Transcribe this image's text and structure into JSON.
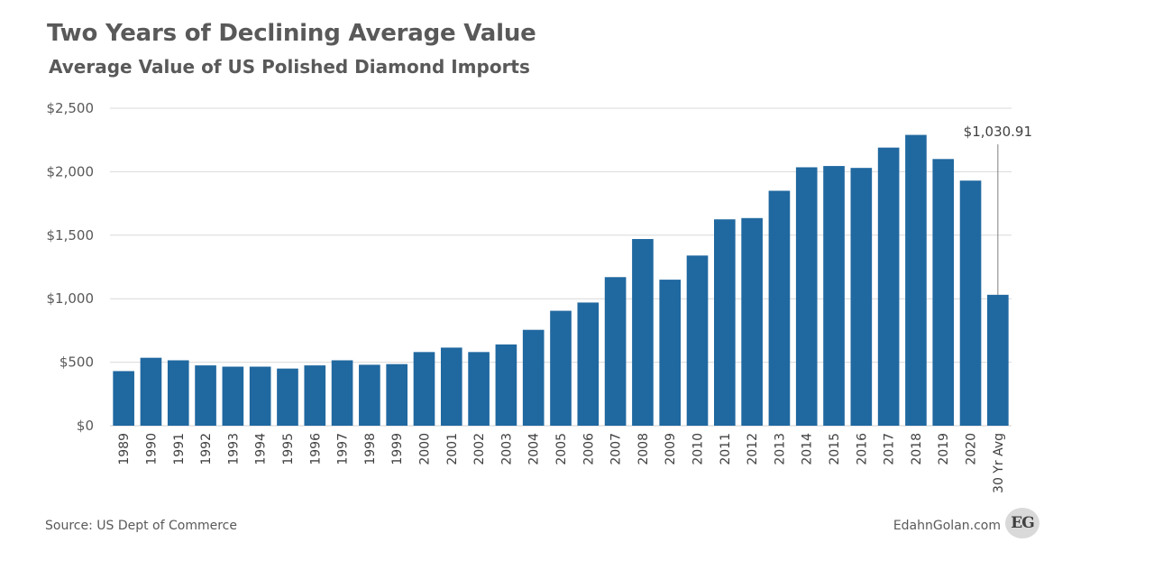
{
  "title": "Two Years of Declining Average Value",
  "subtitle": "Average Value of US Polished Diamond Imports",
  "source": "Source: US Dept of Commerce",
  "site": "EdahnGolan.com",
  "logo_text": "EG",
  "colors": {
    "bar": "#2068a0",
    "grid": "#d9d9d9",
    "text": "#595959"
  },
  "chart_data": {
    "type": "bar",
    "title": "Two Years of Declining Average Value",
    "subtitle": "Average Value of US Polished Diamond Imports",
    "categories": [
      "1989",
      "1990",
      "1991",
      "1992",
      "1993",
      "1994",
      "1995",
      "1996",
      "1997",
      "1998",
      "1999",
      "2000",
      "2001",
      "2002",
      "2003",
      "2004",
      "2005",
      "2006",
      "2007",
      "2008",
      "2009",
      "2010",
      "2011",
      "2012",
      "2013",
      "2014",
      "2015",
      "2016",
      "2017",
      "2018",
      "2019",
      "2020",
      "30 Yr Avg"
    ],
    "values": [
      430,
      535,
      515,
      475,
      465,
      465,
      450,
      475,
      515,
      480,
      485,
      580,
      615,
      580,
      640,
      755,
      905,
      970,
      1170,
      1470,
      1150,
      1340,
      1625,
      1635,
      1850,
      2035,
      2045,
      2030,
      2190,
      2290,
      2100,
      1930,
      1030.91
    ],
    "ylim": [
      0,
      2500
    ],
    "yticks": [
      0,
      500,
      1000,
      1500,
      2000,
      2500
    ],
    "ytick_labels": [
      "$0",
      "$500",
      "$1,000",
      "$1,500",
      "$2,000",
      "$2,500"
    ],
    "annotation": "$1,030.91",
    "grid": true,
    "legend": false
  }
}
